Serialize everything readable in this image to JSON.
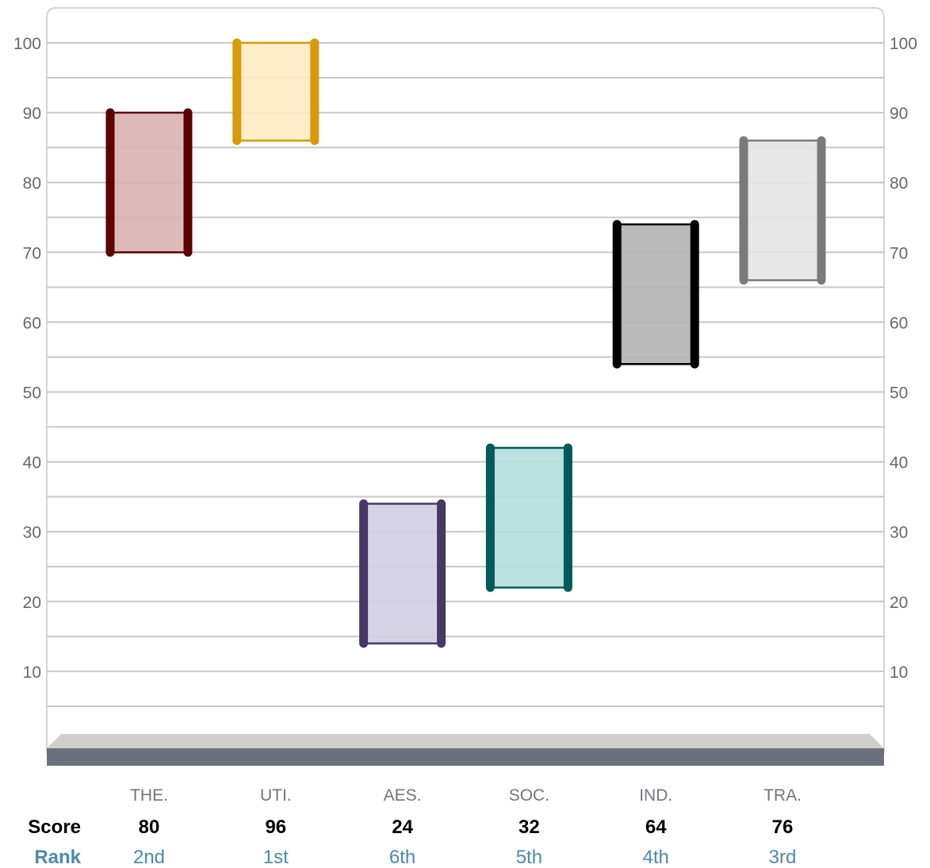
{
  "chart_data": {
    "type": "range-bar",
    "categories": [
      "THE.",
      "UTI.",
      "AES.",
      "SOC.",
      "IND.",
      "TRA."
    ],
    "ranges": [
      [
        70,
        90
      ],
      [
        86,
        100
      ],
      [
        14,
        34
      ],
      [
        22,
        42
      ],
      [
        54,
        74
      ],
      [
        66,
        86
      ]
    ],
    "scores": [
      "80",
      "96",
      "24",
      "32",
      "64",
      "76"
    ],
    "ranks": [
      "2nd",
      "1st",
      "6th",
      "5th",
      "4th",
      "3rd"
    ],
    "row_titles": {
      "score": "Score",
      "rank": "Rank"
    },
    "yticks": [
      "10",
      "20",
      "30",
      "40",
      "50",
      "60",
      "70",
      "80",
      "90",
      "100"
    ],
    "ylim": [
      0,
      100
    ],
    "grid": true,
    "minor_grid_step": 5,
    "colors": {
      "edges": [
        "#5c0000",
        "#d99a0a",
        "#473866",
        "#005a5a",
        "#000000",
        "#7a7a7a"
      ],
      "fills": [
        "#d8b1b1",
        "#fdebc0",
        "#d0cce1",
        "#b4dcdc",
        "#b0b0b0",
        "#e4e4e4"
      ],
      "grid": "#c8c8c8",
      "base_top": "#cfcfcc",
      "base_front": "#6b717c"
    }
  }
}
